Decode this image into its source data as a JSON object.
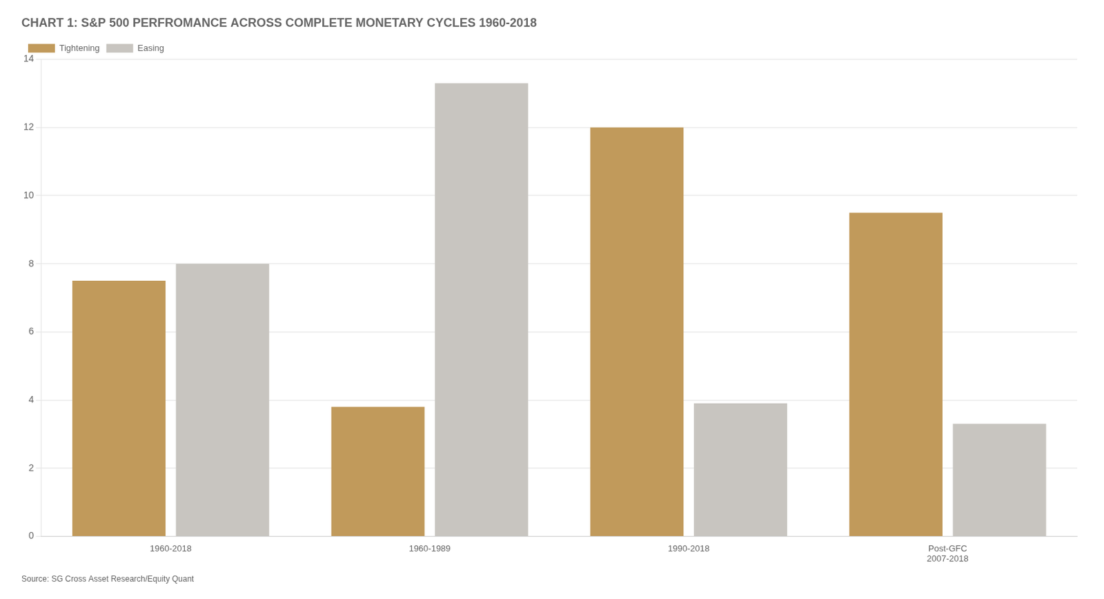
{
  "chart_data": {
    "type": "bar",
    "title": "CHART 1: S&P 500 PERFROMANCE ACROSS COMPLETE MONETARY CYCLES 1960-2018",
    "categories": [
      "1960-2018",
      "1960-1989",
      "1990-2018",
      "Post-GFC\n2007-2018"
    ],
    "series": [
      {
        "name": "Tightening",
        "color": "#C19A5B",
        "values": [
          7.5,
          3.8,
          12.0,
          9.5
        ]
      },
      {
        "name": "Easing",
        "color": "#C8C5C0",
        "values": [
          8.0,
          13.3,
          3.9,
          3.3
        ]
      }
    ],
    "ylim": [
      0,
      14
    ],
    "yticks": [
      0,
      2,
      4,
      6,
      8,
      10,
      12,
      14
    ],
    "grid": true,
    "legend": "upper left",
    "annotations": [
      "Source: SG Cross Asset Research/Equity Quant"
    ]
  }
}
